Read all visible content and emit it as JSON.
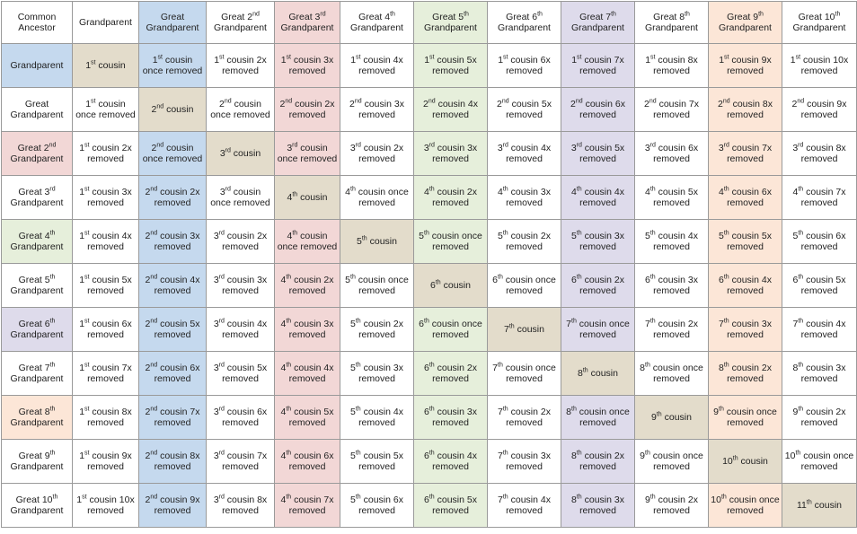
{
  "colors": {
    "col_colors": [
      "",
      "",
      "#c5d9ee",
      "",
      "#f2d7d6",
      "",
      "#e6efdb",
      "",
      "#dedbeb",
      "",
      "#fce6d7",
      ""
    ],
    "diagonal": "#e3dccb",
    "border": "#9a9a9a"
  },
  "table": {
    "header": [
      [
        "Common Ancestor"
      ],
      [
        "Grandparent"
      ],
      [
        "Great Grandparent"
      ],
      [
        "Great 2",
        "nd",
        " Grandparent"
      ],
      [
        "Great 3",
        "rd",
        " Grandparent"
      ],
      [
        "Great 4",
        "th",
        " Grandparent"
      ],
      [
        "Great 5",
        "th",
        " Grandparent"
      ],
      [
        "Great 6",
        "th",
        " Grandparent"
      ],
      [
        "Great 7",
        "th",
        " Grandparent"
      ],
      [
        "Great 8",
        "th",
        " Grandparent"
      ],
      [
        "Great 9",
        "th",
        " Grandparent"
      ],
      [
        "Great 10",
        "th",
        " Grandparent"
      ]
    ],
    "rows": [
      [
        [
          "Grandparent"
        ],
        [
          "1",
          "st",
          " cousin"
        ],
        [
          "1",
          "st",
          " cousin once removed"
        ],
        [
          "1",
          "st",
          " cousin 2x removed"
        ],
        [
          "1",
          "st",
          " cousin 3x removed"
        ],
        [
          "1",
          "st",
          " cousin 4x removed"
        ],
        [
          "1",
          "st",
          " cousin 5x removed"
        ],
        [
          "1",
          "st",
          " cousin 6x removed"
        ],
        [
          "1",
          "st",
          " cousin 7x removed"
        ],
        [
          "1",
          "st",
          " cousin 8x removed"
        ],
        [
          "1",
          "st",
          " cousin 9x removed"
        ],
        [
          "1",
          "st",
          " cousin 10x removed"
        ]
      ],
      [
        [
          "Great Grandparent"
        ],
        [
          "1",
          "st",
          " cousin once removed"
        ],
        [
          "2",
          "nd",
          " cousin"
        ],
        [
          "2",
          "nd",
          " cousin once removed"
        ],
        [
          "2",
          "nd",
          " cousin 2x removed"
        ],
        [
          "2",
          "nd",
          " cousin 3x removed"
        ],
        [
          "2",
          "nd",
          " cousin 4x removed"
        ],
        [
          "2",
          "nd",
          " cousin 5x removed"
        ],
        [
          "2",
          "nd",
          " cousin 6x removed"
        ],
        [
          "2",
          "nd",
          " cousin 7x removed"
        ],
        [
          "2",
          "nd",
          " cousin 8x removed"
        ],
        [
          "2",
          "nd",
          " cousin 9x removed"
        ]
      ],
      [
        [
          "Great 2",
          "nd",
          " Grandparent"
        ],
        [
          "1",
          "st",
          " cousin 2x removed"
        ],
        [
          "2",
          "nd",
          " cousin once removed"
        ],
        [
          "3",
          "rd",
          " cousin"
        ],
        [
          "3",
          "rd",
          " cousin once removed"
        ],
        [
          "3",
          "rd",
          " cousin 2x removed"
        ],
        [
          "3",
          "rd",
          " cousin 3x removed"
        ],
        [
          "3",
          "rd",
          " cousin 4x removed"
        ],
        [
          "3",
          "rd",
          " cousin 5x removed"
        ],
        [
          "3",
          "rd",
          " cousin 6x removed"
        ],
        [
          "3",
          "rd",
          " cousin 7x removed"
        ],
        [
          "3",
          "rd",
          " cousin 8x removed"
        ]
      ],
      [
        [
          "Great 3",
          "rd",
          " Grandparent"
        ],
        [
          "1",
          "st",
          " cousin 3x removed"
        ],
        [
          "2",
          "nd",
          " cousin 2x removed"
        ],
        [
          "3",
          "rd",
          " cousin once removed"
        ],
        [
          "4",
          "th",
          " cousin"
        ],
        [
          "4",
          "th",
          " cousin once removed"
        ],
        [
          "4",
          "th",
          " cousin 2x removed"
        ],
        [
          "4",
          "th",
          " cousin 3x removed"
        ],
        [
          "4",
          "th",
          " cousin 4x removed"
        ],
        [
          "4",
          "th",
          " cousin 5x removed"
        ],
        [
          "4",
          "th",
          " cousin 6x removed"
        ],
        [
          "4",
          "th",
          " cousin 7x removed"
        ]
      ],
      [
        [
          "Great 4",
          "th",
          " Grandparent"
        ],
        [
          "1",
          "st",
          " cousin 4x removed"
        ],
        [
          "2",
          "nd",
          " cousin 3x removed"
        ],
        [
          "3",
          "rd",
          " cousin 2x removed"
        ],
        [
          "4",
          "th",
          " cousin once removed"
        ],
        [
          "5",
          "th",
          " cousin"
        ],
        [
          "5",
          "th",
          " cousin once removed"
        ],
        [
          "5",
          "th",
          " cousin 2x removed"
        ],
        [
          "5",
          "th",
          " cousin 3x removed"
        ],
        [
          "5",
          "th",
          " cousin 4x removed"
        ],
        [
          "5",
          "th",
          " cousin 5x removed"
        ],
        [
          "5",
          "th",
          " cousin 6x removed"
        ]
      ],
      [
        [
          "Great 5",
          "th",
          " Grandparent"
        ],
        [
          "1",
          "st",
          " cousin 5x removed"
        ],
        [
          "2",
          "nd",
          " cousin 4x removed"
        ],
        [
          "3",
          "rd",
          " cousin 3x removed"
        ],
        [
          "4",
          "th",
          " cousin 2x removed"
        ],
        [
          "5",
          "th",
          " cousin once removed"
        ],
        [
          "6",
          "th",
          " cousin"
        ],
        [
          "6",
          "th",
          " cousin once removed"
        ],
        [
          "6",
          "th",
          " cousin 2x removed"
        ],
        [
          "6",
          "th",
          " cousin 3x removed"
        ],
        [
          "6",
          "th",
          " cousin 4x removed"
        ],
        [
          "6",
          "th",
          " cousin 5x removed"
        ]
      ],
      [
        [
          "Great 6",
          "th",
          " Grandparent"
        ],
        [
          "1",
          "st",
          " cousin 6x removed"
        ],
        [
          "2",
          "nd",
          " cousin 5x removed"
        ],
        [
          "3",
          "rd",
          " cousin 4x removed"
        ],
        [
          "4",
          "th",
          " cousin 3x removed"
        ],
        [
          "5",
          "th",
          " cousin 2x removed"
        ],
        [
          "6",
          "th",
          " cousin once removed"
        ],
        [
          "7",
          "th",
          " cousin"
        ],
        [
          "7",
          "th",
          " cousin once removed"
        ],
        [
          "7",
          "th",
          " cousin 2x removed"
        ],
        [
          "7",
          "th",
          " cousin 3x removed"
        ],
        [
          "7",
          "th",
          " cousin 4x removed"
        ]
      ],
      [
        [
          "Great 7",
          "th",
          " Grandparent"
        ],
        [
          "1",
          "st",
          " cousin 7x removed"
        ],
        [
          "2",
          "nd",
          " cousin 6x removed"
        ],
        [
          "3",
          "rd",
          " cousin 5x removed"
        ],
        [
          "4",
          "th",
          " cousin 4x removed"
        ],
        [
          "5",
          "th",
          " cousin 3x removed"
        ],
        [
          "6",
          "th",
          " cousin 2x removed"
        ],
        [
          "7",
          "th",
          " cousin once removed"
        ],
        [
          "8",
          "th",
          " cousin"
        ],
        [
          "8",
          "th",
          " cousin once removed"
        ],
        [
          "8",
          "th",
          " cousin 2x removed"
        ],
        [
          "8",
          "th",
          " cousin 3x removed"
        ]
      ],
      [
        [
          "Great 8",
          "th",
          " Grandparent"
        ],
        [
          "1",
          "st",
          " cousin 8x removed"
        ],
        [
          "2",
          "nd",
          " cousin 7x removed"
        ],
        [
          "3",
          "rd",
          " cousin 6x removed"
        ],
        [
          "4",
          "th",
          " cousin 5x removed"
        ],
        [
          "5",
          "th",
          " cousin 4x removed"
        ],
        [
          "6",
          "th",
          " cousin 3x removed"
        ],
        [
          "7",
          "th",
          " cousin 2x removed"
        ],
        [
          "8",
          "th",
          " cousin once removed"
        ],
        [
          "9",
          "th",
          " cousin"
        ],
        [
          "9",
          "th",
          " cousin once removed"
        ],
        [
          "9",
          "th",
          " cousin 2x removed"
        ]
      ],
      [
        [
          "Great 9",
          "th",
          " Grandparent"
        ],
        [
          "1",
          "st",
          " cousin 9x removed"
        ],
        [
          "2",
          "nd",
          " cousin 8x removed"
        ],
        [
          "3",
          "rd",
          " cousin 7x removed"
        ],
        [
          "4",
          "th",
          " cousin 6x removed"
        ],
        [
          "5",
          "th",
          " cousin 5x removed"
        ],
        [
          "6",
          "th",
          " cousin 4x removed"
        ],
        [
          "7",
          "th",
          " cousin 3x removed"
        ],
        [
          "8",
          "th",
          " cousin 2x removed"
        ],
        [
          "9",
          "th",
          " cousin once removed"
        ],
        [
          "10",
          "th",
          " cousin"
        ],
        [
          "10",
          "th",
          " cousin once removed"
        ]
      ],
      [
        [
          "Great 10",
          "th",
          " Grandparent"
        ],
        [
          "1",
          "st",
          " cousin 10x removed"
        ],
        [
          "2",
          "nd",
          " cousin 9x removed"
        ],
        [
          "3",
          "rd",
          " cousin 8x removed"
        ],
        [
          "4",
          "th",
          " cousin 7x removed"
        ],
        [
          "5",
          "th",
          " cousin 6x removed"
        ],
        [
          "6",
          "th",
          " cousin 5x removed"
        ],
        [
          "7",
          "th",
          " cousin 4x removed"
        ],
        [
          "8",
          "th",
          " cousin 3x removed"
        ],
        [
          "9",
          "th",
          " cousin 2x removed"
        ],
        [
          "10",
          "th",
          " cousin once removed"
        ],
        [
          "11",
          "th",
          " cousin"
        ]
      ]
    ]
  }
}
